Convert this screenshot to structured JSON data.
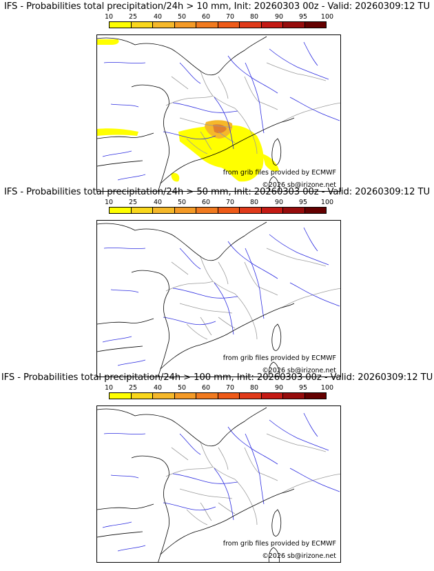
{
  "colorbar": {
    "labels": [
      "10",
      "25",
      "40",
      "50",
      "60",
      "70",
      "80",
      "90",
      "95",
      "100"
    ],
    "colors": [
      "#ffff00",
      "#f9d71c",
      "#f5b82a",
      "#f49a26",
      "#f17a1f",
      "#ee5a18",
      "#e03a1a",
      "#c41a14",
      "#960c0c",
      "#640000"
    ]
  },
  "credit": "from grib files provided by ECMWF",
  "copyright": "©2026 sb@irizone.net",
  "panels": [
    {
      "title": "IFS - Probabilities total precipitation/24h > 10 mm, Init: 20260303 00z - Valid: 20260309:12 TU",
      "threshold_mm": 10
    },
    {
      "title": "IFS - Probabilities total precipitation/24h > 50 mm, Init: 20260303 00z - Valid: 20260309:12 TU",
      "threshold_mm": 50
    },
    {
      "title": "IFS - Probabilities total precipitation/24h > 100 mm, Init: 20260303 00z - Valid: 20260309:12 TU",
      "threshold_mm": 100
    }
  ],
  "map_colors": {
    "coast": "#000000",
    "rivers": "#2a2ae0",
    "borders": "#9a9a9a",
    "precip_low": "#ffff00",
    "precip_mid": "#f5b82a",
    "precip_high": "#e08030"
  }
}
